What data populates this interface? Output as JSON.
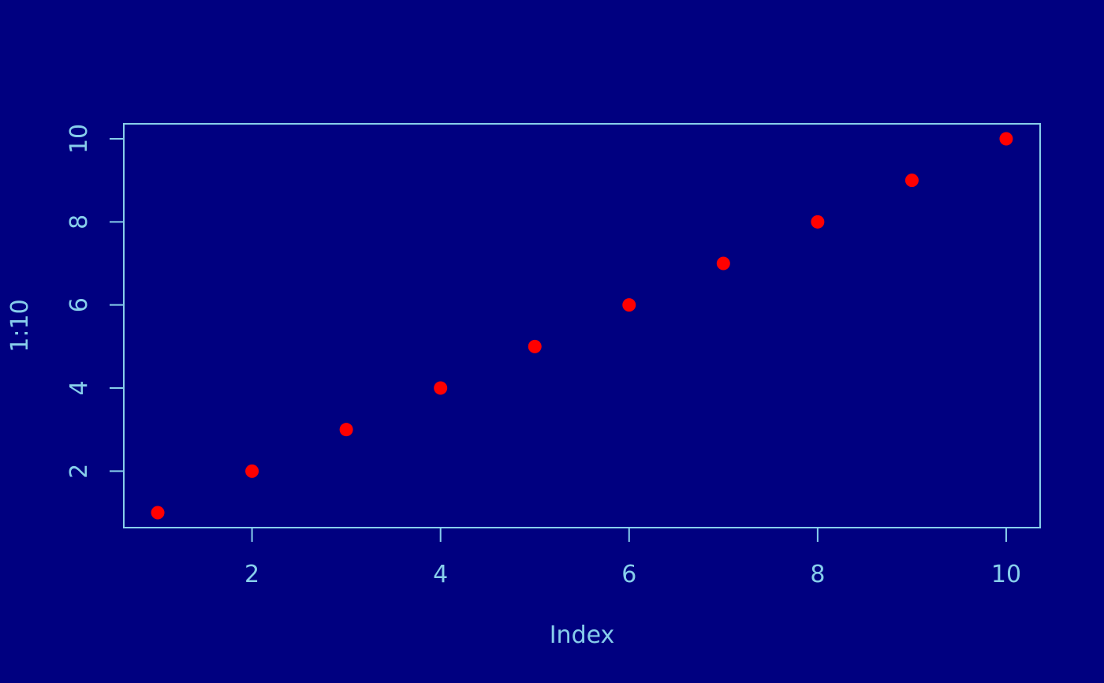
{
  "chart_data": {
    "type": "scatter",
    "title": "",
    "xlabel": "Index",
    "ylabel": "1:10",
    "x": [
      1,
      2,
      3,
      4,
      5,
      6,
      7,
      8,
      9,
      10
    ],
    "y": [
      1,
      2,
      3,
      4,
      5,
      6,
      7,
      8,
      9,
      10
    ],
    "xlim": [
      0.64,
      10.36
    ],
    "ylim": [
      0.64,
      10.36
    ],
    "x_ticks": [
      2,
      4,
      6,
      8,
      10
    ],
    "y_ticks": [
      2,
      4,
      6,
      8,
      10
    ],
    "grid": false,
    "colors": {
      "background": "#000080",
      "axis": "#87CEEB",
      "points": "#FF0000"
    }
  }
}
